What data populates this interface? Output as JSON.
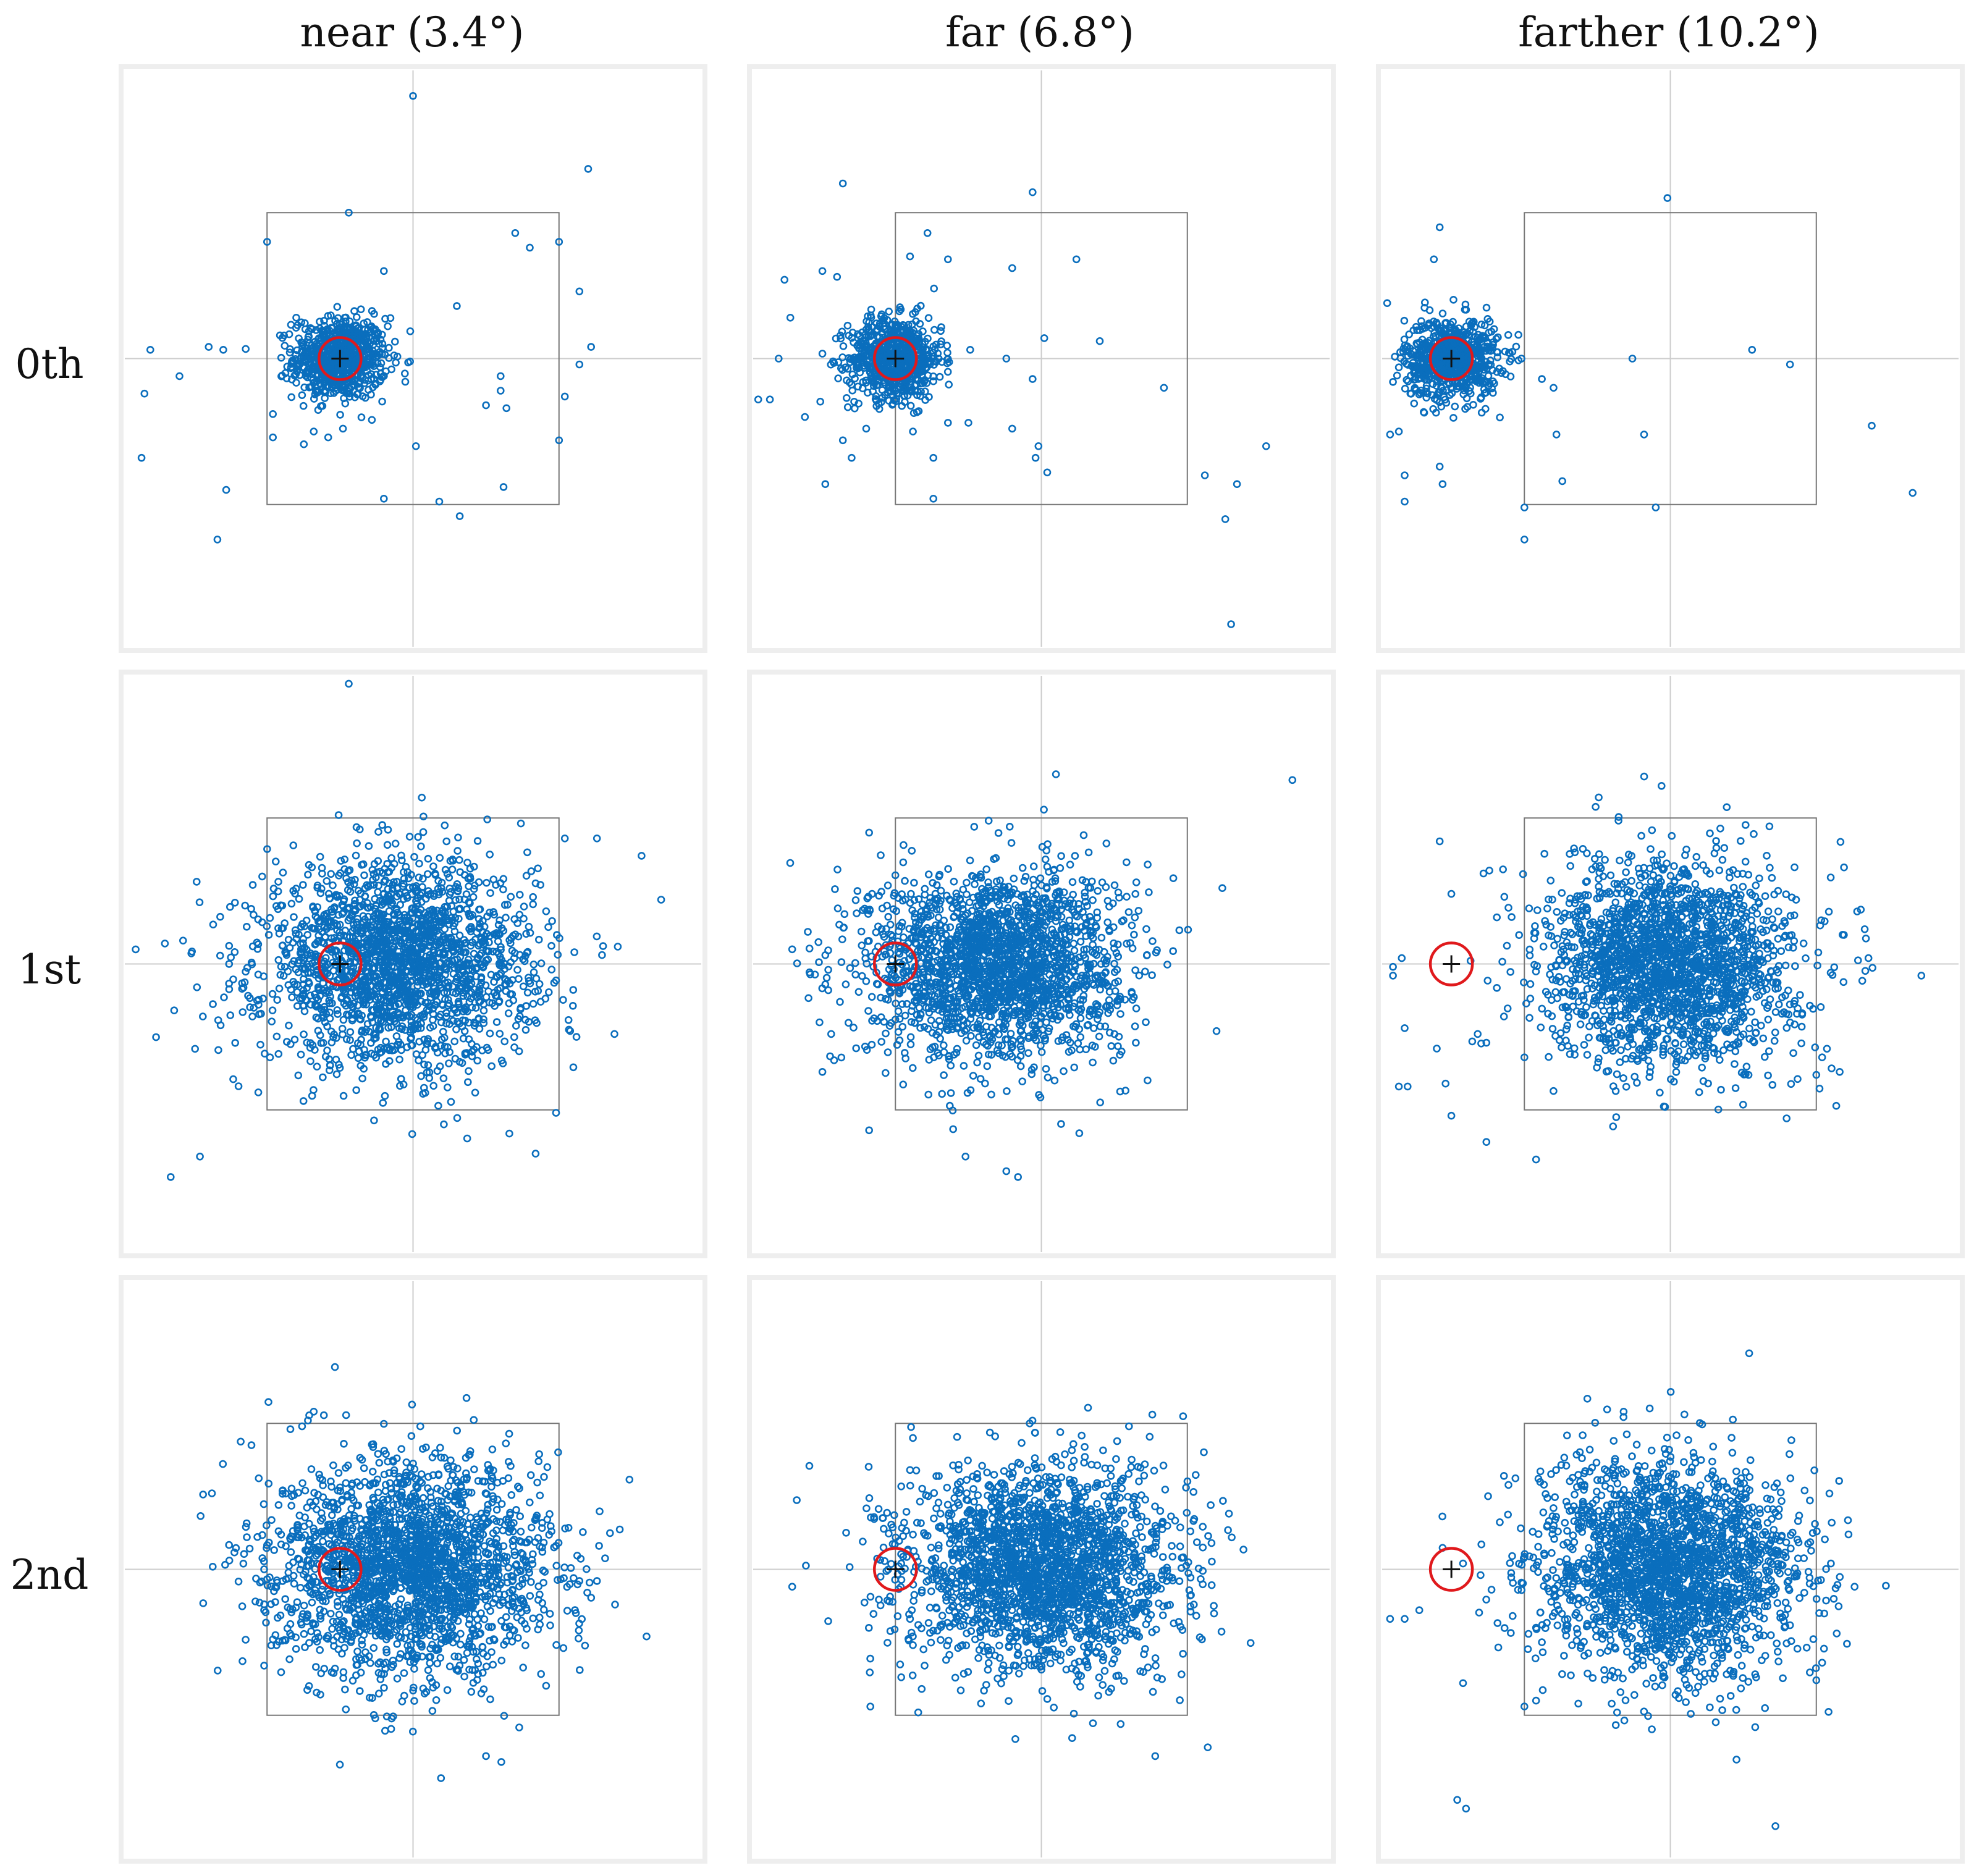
{
  "column_titles": [
    "near (3.4°)",
    "far (6.8°)",
    "farther (10.2°)"
  ],
  "row_labels": [
    "0th",
    "1st",
    "2nd"
  ],
  "colors": {
    "points": "#0a6ebd",
    "target_circle": "#e0191c",
    "cross": "#111111",
    "frame": "#eeeeee",
    "crosshair": "#cccccc",
    "box": "#777777"
  },
  "chart_data": {
    "type": "scatter",
    "grid": "3x3 small multiples",
    "axis_range": {
      "x": [
        -10,
        10
      ],
      "y": [
        -10,
        10
      ]
    },
    "center_box": {
      "x": [
        -5,
        5
      ],
      "y": [
        -5,
        5
      ]
    },
    "panels": [
      {
        "row": "0th",
        "col": "near (3.4°)",
        "target": [
          -2.5,
          0
        ],
        "cluster": {
          "center": [
            -2.5,
            0
          ],
          "sd": [
            0.8,
            0.7
          ],
          "n": 700
        },
        "scatter_points": [
          [
            0,
            9
          ],
          [
            -2.2,
            5
          ],
          [
            3.5,
            4.3
          ],
          [
            6,
            6.5
          ],
          [
            5,
            4
          ],
          [
            4,
            3.8
          ],
          [
            -1,
            3
          ],
          [
            -5,
            4
          ],
          [
            1.5,
            1.8
          ],
          [
            -4,
            1.4
          ],
          [
            5.7,
            2.3
          ],
          [
            -9,
            0.3
          ],
          [
            -7,
            0.4
          ],
          [
            -6.5,
            0.3
          ],
          [
            -8,
            -0.6
          ],
          [
            -9.2,
            -1.2
          ],
          [
            -9.3,
            -3.4
          ],
          [
            -6.4,
            -4.5
          ],
          [
            -6.7,
            -6.2
          ],
          [
            -4.8,
            -1.9
          ],
          [
            -4.8,
            -2.7
          ],
          [
            3,
            -0.6
          ],
          [
            3.2,
            -1.7
          ],
          [
            3,
            -1.1
          ],
          [
            2.5,
            -1.6
          ],
          [
            5.2,
            -1.3
          ],
          [
            5.7,
            -0.2
          ],
          [
            6.1,
            0.4
          ],
          [
            5,
            -2.8
          ],
          [
            0.9,
            -4.9
          ],
          [
            1.6,
            -5.4
          ],
          [
            3.1,
            -4.4
          ],
          [
            -1,
            -4.8
          ],
          [
            0.1,
            -3
          ],
          [
            -3.4,
            -2.5
          ],
          [
            -2.4,
            -2.4
          ]
        ]
      },
      {
        "row": "0th",
        "col": "far (6.8°)",
        "target": [
          -5,
          0
        ],
        "cluster": {
          "center": [
            -5,
            0
          ],
          "sd": [
            0.8,
            0.7
          ],
          "n": 700
        },
        "scatter_points": [
          [
            -0.3,
            5.7
          ],
          [
            -3.9,
            4.3
          ],
          [
            -6.8,
            6
          ],
          [
            -7.5,
            3
          ],
          [
            -7,
            2.8
          ],
          [
            -4.5,
            3.5
          ],
          [
            -3.2,
            3.4
          ],
          [
            -1,
            3.1
          ],
          [
            1.2,
            3.4
          ],
          [
            -8.8,
            2.7
          ],
          [
            -8.6,
            1.4
          ],
          [
            -9,
            0
          ],
          [
            -9.3,
            -1.4
          ],
          [
            -9.7,
            -1.4
          ],
          [
            -8.1,
            -2
          ],
          [
            -6,
            -2.4
          ],
          [
            -6.8,
            -2.8
          ],
          [
            -7.4,
            -4.3
          ],
          [
            -6.5,
            -3.4
          ],
          [
            -4.2,
            -1.8
          ],
          [
            -4.4,
            -2.5
          ],
          [
            -3.7,
            -3.4
          ],
          [
            -3.2,
            -2.2
          ],
          [
            -2.5,
            -2.2
          ],
          [
            -3.7,
            -4.8
          ],
          [
            -1,
            -2.4
          ],
          [
            -0.1,
            -3
          ],
          [
            -0.2,
            -3.4
          ],
          [
            0.2,
            -3.9
          ],
          [
            -0.3,
            -0.7
          ],
          [
            0.1,
            0.7
          ],
          [
            2,
            0.6
          ],
          [
            -1.2,
            0
          ],
          [
            4.2,
            -1
          ],
          [
            5.6,
            -4
          ],
          [
            6.7,
            -4.3
          ],
          [
            6.3,
            -5.5
          ],
          [
            7.7,
            -3
          ],
          [
            6.5,
            -9.1
          ]
        ]
      },
      {
        "row": "0th",
        "col": "farther (10.2°)",
        "target": [
          -7.5,
          0
        ],
        "cluster": {
          "center": [
            -7.5,
            0
          ],
          "sd": [
            0.8,
            0.7
          ],
          "n": 700
        },
        "scatter_points": [
          [
            -0.1,
            5.5
          ],
          [
            -7.9,
            4.5
          ],
          [
            -8.1,
            3.4
          ],
          [
            -9.7,
            1.9
          ],
          [
            -9.3,
            -0.3
          ],
          [
            -9.5,
            -0.8
          ],
          [
            -9.6,
            -2.6
          ],
          [
            -9.3,
            -2.5
          ],
          [
            -9.1,
            -4
          ],
          [
            -9.1,
            -4.9
          ],
          [
            -7.8,
            -4.3
          ],
          [
            -7.9,
            -3.7
          ],
          [
            -5.5,
            -0.1
          ],
          [
            -5.1,
            0
          ],
          [
            -4.4,
            -0.7
          ],
          [
            -4,
            -1
          ],
          [
            -3.9,
            -2.6
          ],
          [
            -3.7,
            -4.2
          ],
          [
            -5,
            -5.1
          ],
          [
            -5,
            -6.2
          ],
          [
            -0.9,
            -2.6
          ],
          [
            -0.5,
            -5.1
          ],
          [
            -1.3,
            0
          ],
          [
            2.8,
            0.3
          ],
          [
            4.1,
            -0.2
          ],
          [
            6.9,
            -2.3
          ],
          [
            8.3,
            -4.6
          ]
        ]
      },
      {
        "row": "1st",
        "col": "near (3.4°)",
        "target": [
          -2.5,
          0
        ],
        "cluster": {
          "center": [
            -0.5,
            0
          ],
          "sd": [
            2.3,
            1.7
          ],
          "n": 2000
        },
        "scatter_points": [
          [
            -2.2,
            9.6
          ],
          [
            0.3,
            5.7
          ],
          [
            5.2,
            4.3
          ],
          [
            6.3,
            4.3
          ],
          [
            8.5,
            2.2
          ],
          [
            -6.1,
            2.1
          ],
          [
            -9.5,
            0.5
          ],
          [
            -8.5,
            0.7
          ],
          [
            -6.3,
            0
          ],
          [
            -7.4,
            -0.8
          ],
          [
            -7.2,
            -1.8
          ],
          [
            -5.5,
            -1.8
          ],
          [
            -4.9,
            -3.2
          ],
          [
            -5.3,
            -4.4
          ],
          [
            -7.3,
            -6.6
          ],
          [
            -8.3,
            -7.3
          ],
          [
            4.2,
            -6.5
          ],
          [
            4.9,
            -5.1
          ],
          [
            5.6,
            -2.5
          ],
          [
            6.9,
            -2.4
          ]
        ]
      },
      {
        "row": "1st",
        "col": "far (6.8°)",
        "target": [
          -5,
          0
        ],
        "cluster": {
          "center": [
            -1.5,
            0
          ],
          "sd": [
            2.2,
            1.6
          ],
          "n": 2000
        },
        "scatter_points": [
          [
            0.5,
            6.5
          ],
          [
            8.6,
            6.3
          ],
          [
            -2.3,
            4.7
          ],
          [
            -5.9,
            4.5
          ],
          [
            -6.3,
            2.5
          ],
          [
            -5.8,
            2.4
          ],
          [
            -8,
            1.1
          ],
          [
            -7.4,
            0.3
          ],
          [
            -7.3,
            -0.2
          ],
          [
            -7.4,
            -0.7
          ],
          [
            -7.3,
            -0.9
          ],
          [
            -6.9,
            -1.3
          ],
          [
            -7.6,
            -2
          ],
          [
            -7.2,
            -2.4
          ],
          [
            -7.1,
            -3.3
          ],
          [
            -7.5,
            -3.7
          ],
          [
            -5.9,
            -5.7
          ],
          [
            -2.6,
            -6.6
          ],
          [
            -0.8,
            -7.3
          ],
          [
            -1.2,
            -7.1
          ],
          [
            1.3,
            -5.8
          ],
          [
            6.2,
            2.6
          ],
          [
            6,
            -2.3
          ]
        ]
      },
      {
        "row": "1st",
        "col": "farther (10.2°)",
        "target": [
          -7.5,
          0
        ],
        "cluster": {
          "center": [
            0,
            0
          ],
          "sd": [
            2.1,
            1.7
          ],
          "n": 2000
        },
        "scatter_points": [
          [
            -0.3,
            6.1
          ],
          [
            -7.9,
            4.2
          ],
          [
            -7.5,
            2.4
          ],
          [
            -6.4,
            3.1
          ],
          [
            -6.2,
            3.2
          ],
          [
            -9.2,
            0.2
          ],
          [
            -9.5,
            -0.4
          ],
          [
            -9.1,
            -2.2
          ],
          [
            -9.3,
            -4.2
          ],
          [
            -9,
            -4.2
          ],
          [
            -8,
            -2.9
          ],
          [
            -7.7,
            -4.1
          ],
          [
            -6.6,
            -2.4
          ],
          [
            -6.3,
            -2.7
          ],
          [
            -5.7,
            -1.8
          ],
          [
            -5,
            -3.2
          ],
          [
            -7.5,
            -5.2
          ],
          [
            -6.3,
            -6.1
          ],
          [
            -4.6,
            -6.7
          ],
          [
            -2.3,
            3
          ],
          [
            3.7,
            1.8
          ],
          [
            5.8,
            -3.7
          ],
          [
            5,
            -3.8
          ],
          [
            5.2,
            -3.2
          ],
          [
            5.9,
            1
          ],
          [
            6.4,
            1.8
          ],
          [
            -9.5,
            -0.1
          ],
          [
            8.6,
            -0.4
          ]
        ]
      },
      {
        "row": "2nd",
        "col": "near (3.4°)",
        "target": [
          -2.5,
          0
        ],
        "cluster": {
          "center": [
            0,
            0
          ],
          "sd": [
            2.3,
            1.8
          ],
          "n": 2200
        },
        "scatter_points": [
          [
            -3.4,
            5.4
          ],
          [
            -3.6,
            5.1
          ],
          [
            -3.8,
            4.9
          ],
          [
            -4.2,
            4.8
          ],
          [
            -5.1,
            0
          ],
          [
            -5.1,
            -1.2
          ],
          [
            -4.8,
            -2.4
          ],
          [
            -5.4,
            -1.1
          ],
          [
            -5.1,
            -3.3
          ],
          [
            6.3,
            -0.4
          ],
          [
            5.7,
            -0.4
          ],
          [
            5.5,
            -0.3
          ],
          [
            8,
            -2.3
          ],
          [
            -2.3,
            -4.8
          ],
          [
            2.5,
            -6.4
          ],
          [
            4.3,
            3.7
          ],
          [
            4.6,
            3.5
          ]
        ]
      },
      {
        "row": "2nd",
        "col": "far (6.8°)",
        "target": [
          -5,
          0
        ],
        "cluster": {
          "center": [
            0,
            0
          ],
          "sd": [
            2.3,
            1.7
          ],
          "n": 2200
        },
        "scatter_points": [
          [
            -4.8,
            0.2
          ],
          [
            -4.7,
            1.6
          ],
          [
            -4.5,
            3.4
          ],
          [
            -4.4,
            4.5
          ],
          [
            -4.5,
            -1.7
          ],
          [
            -4.4,
            -2.6
          ],
          [
            -4,
            -3.3
          ],
          [
            -4.8,
            -3.7
          ],
          [
            -4.1,
            -4.1
          ],
          [
            3.8,
            5.3
          ],
          [
            3,
            4.9
          ],
          [
            -0.4,
            5
          ],
          [
            5.8,
            2.2
          ],
          [
            5.1,
            -0.9
          ],
          [
            5.5,
            -2.4
          ],
          [
            4.8,
            -3.6
          ],
          [
            3.9,
            -6.4
          ],
          [
            5.7,
            -6.1
          ],
          [
            -2.7,
            -2.6
          ]
        ]
      },
      {
        "row": "2nd",
        "col": "farther (10.2°)",
        "target": [
          -7.5,
          0
        ],
        "cluster": {
          "center": [
            0,
            0
          ],
          "sd": [
            2.2,
            1.8
          ],
          "n": 2200
        },
        "scatter_points": [
          [
            2.7,
            7.4
          ],
          [
            -1.6,
            5.4
          ],
          [
            -5.7,
            3.2
          ],
          [
            -7.1,
            0.2
          ],
          [
            -6.5,
            -0.2
          ],
          [
            -9.6,
            -1.7
          ],
          [
            -9.1,
            -1.7
          ],
          [
            -8.6,
            -1.4
          ],
          [
            -7.1,
            -3.9
          ],
          [
            -7.3,
            -7.9
          ],
          [
            -7,
            -8.2
          ],
          [
            -5,
            -4.7
          ],
          [
            -4.6,
            -4.5
          ],
          [
            -5.4,
            -1.6
          ],
          [
            -4.6,
            -2
          ],
          [
            -4.4,
            -2.5
          ],
          [
            4.6,
            2.7
          ],
          [
            5.5,
            0.2
          ],
          [
            5.1,
            -1.5
          ],
          [
            5.2,
            -3.2
          ],
          [
            5.7,
            -2.2
          ],
          [
            5,
            -3.8
          ],
          [
            3.6,
            -8.8
          ]
        ]
      }
    ]
  }
}
